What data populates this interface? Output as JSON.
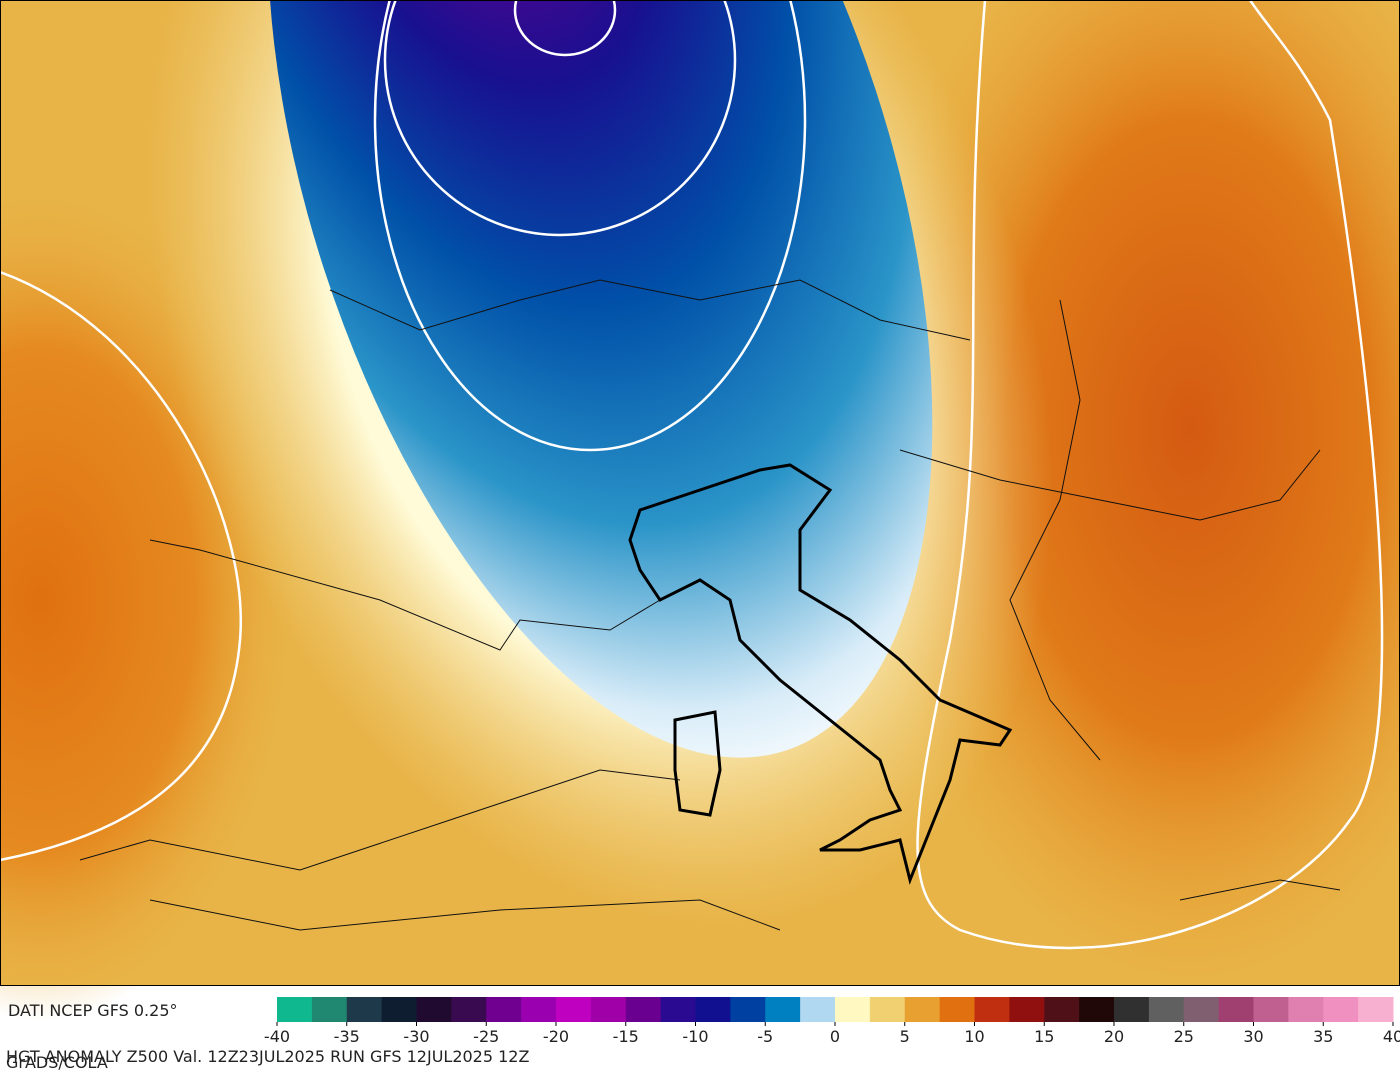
{
  "header": {
    "source": "DATI NCEP GFS 0.25°"
  },
  "colorbar": {
    "ticks": [
      -40,
      -35,
      -30,
      -25,
      -20,
      -15,
      -10,
      -5,
      0,
      5,
      10,
      15,
      20,
      25,
      30,
      35,
      40
    ],
    "colors": [
      "#10b890",
      "#208870",
      "#1e3a4a",
      "#0e1e30",
      "#200a30",
      "#3a0a50",
      "#700090",
      "#9a00b0",
      "#c000c0",
      "#a000a8",
      "#6a0090",
      "#2a0a90",
      "#101090",
      "#0040a0",
      "#0080c0",
      "#b0d8f0",
      "#fff8c0",
      "#f0d070",
      "#e8a030",
      "#e07010",
      "#c03010",
      "#901010",
      "#501018",
      "#200808",
      "#303030",
      "#606060",
      "#806070",
      "#a04070",
      "#c06090",
      "#e080b0",
      "#f090c0",
      "#f8b0d0"
    ]
  },
  "footer": {
    "title": "HGT ANOMALY Z500 Val. 12Z23JUL2025 RUN GFS 12JUL2025 12Z",
    "credit": "GrADS/COLA"
  }
}
